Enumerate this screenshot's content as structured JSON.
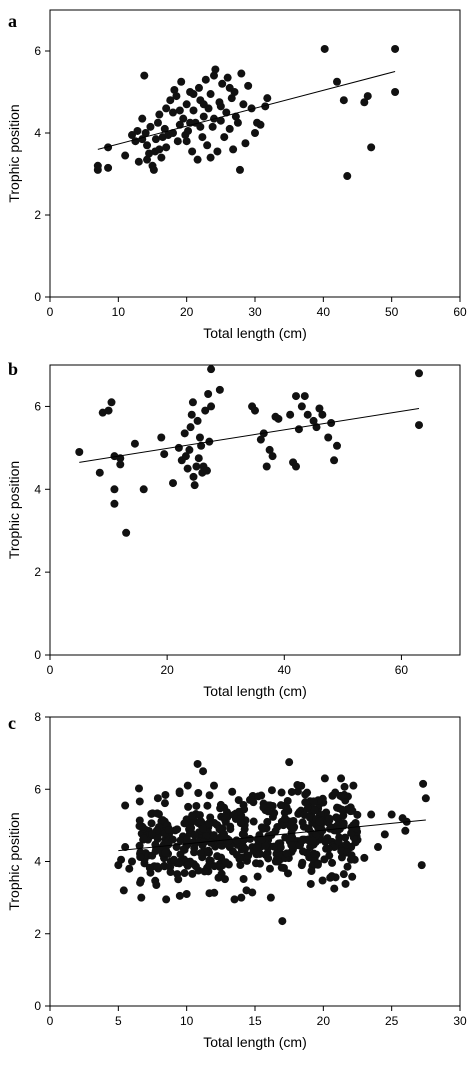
{
  "chart_data": [
    {
      "type": "scatter",
      "panel_label": "a",
      "xlabel": "Total length (cm)",
      "ylabel": "Trophic position",
      "xlim": [
        0,
        60
      ],
      "ylim": [
        0,
        7
      ],
      "xticks": [
        0,
        10,
        20,
        30,
        40,
        50,
        60
      ],
      "yticks": [
        0,
        2,
        4,
        6
      ],
      "grid": false,
      "regression": {
        "x": [
          7,
          50.5
        ],
        "y": [
          3.6,
          5.5
        ]
      },
      "points": [
        [
          7,
          3.1
        ],
        [
          7,
          3.2
        ],
        [
          8.5,
          3.65
        ],
        [
          8.5,
          3.15
        ],
        [
          11,
          3.45
        ],
        [
          12,
          3.95
        ],
        [
          12.5,
          3.8
        ],
        [
          13,
          3.3
        ],
        [
          13.5,
          4.35
        ],
        [
          13.8,
          5.4
        ],
        [
          14,
          4.0
        ],
        [
          14.2,
          3.7
        ],
        [
          14.5,
          3.5
        ],
        [
          14.7,
          4.15
        ],
        [
          15,
          3.2
        ],
        [
          15.2,
          3.1
        ],
        [
          15.4,
          3.55
        ],
        [
          15.5,
          3.85
        ],
        [
          15.8,
          4.25
        ],
        [
          16,
          3.6
        ],
        [
          16.3,
          3.4
        ],
        [
          16.5,
          3.9
        ],
        [
          16.8,
          4.1
        ],
        [
          17,
          4.6
        ],
        [
          17.3,
          3.95
        ],
        [
          17.6,
          4.8
        ],
        [
          18,
          4.5
        ],
        [
          18.2,
          5.05
        ],
        [
          18.5,
          4.9
        ],
        [
          18.7,
          3.8
        ],
        [
          19,
          4.2
        ],
        [
          19.2,
          5.25
        ],
        [
          19.5,
          4.35
        ],
        [
          19.8,
          3.95
        ],
        [
          20,
          4.7
        ],
        [
          20.2,
          4.05
        ],
        [
          20.5,
          5.0
        ],
        [
          20.8,
          3.55
        ],
        [
          21,
          4.55
        ],
        [
          21.3,
          4.25
        ],
        [
          21.6,
          3.35
        ],
        [
          21.8,
          5.1
        ],
        [
          22,
          4.8
        ],
        [
          22.3,
          3.9
        ],
        [
          22.5,
          4.4
        ],
        [
          22.8,
          5.3
        ],
        [
          23,
          3.7
        ],
        [
          23.2,
          4.6
        ],
        [
          23.5,
          4.95
        ],
        [
          23.8,
          4.15
        ],
        [
          24,
          5.4
        ],
        [
          24.2,
          5.55
        ],
        [
          24.5,
          3.55
        ],
        [
          24.8,
          4.75
        ],
        [
          25,
          4.3
        ],
        [
          25.2,
          5.2
        ],
        [
          25.5,
          3.9
        ],
        [
          25.8,
          4.5
        ],
        [
          26,
          5.35
        ],
        [
          26.3,
          4.1
        ],
        [
          26.6,
          4.85
        ],
        [
          26.8,
          3.6
        ],
        [
          27,
          5.0
        ],
        [
          27.2,
          4.4
        ],
        [
          27.5,
          4.25
        ],
        [
          27.8,
          3.1
        ],
        [
          28,
          5.45
        ],
        [
          28.3,
          4.7
        ],
        [
          28.6,
          3.75
        ],
        [
          29,
          5.15
        ],
        [
          29.5,
          4.6
        ],
        [
          30,
          4.0
        ],
        [
          30.3,
          4.25
        ],
        [
          30.8,
          4.2
        ],
        [
          31.5,
          4.65
        ],
        [
          31.8,
          4.85
        ],
        [
          18,
          4.0
        ],
        [
          17,
          3.65
        ],
        [
          16,
          4.45
        ],
        [
          14.2,
          3.35
        ],
        [
          13.5,
          3.85
        ],
        [
          12.8,
          4.05
        ],
        [
          22.5,
          4.7
        ],
        [
          21,
          4.95
        ],
        [
          23.5,
          3.4
        ],
        [
          25,
          4.65
        ],
        [
          26.3,
          5.1
        ],
        [
          24,
          4.35
        ],
        [
          20,
          3.8
        ],
        [
          19,
          4.55
        ],
        [
          20.5,
          4.25
        ],
        [
          22,
          4.15
        ],
        [
          40.2,
          6.05
        ],
        [
          42,
          5.25
        ],
        [
          43,
          4.8
        ],
        [
          43.5,
          2.95
        ],
        [
          46,
          4.75
        ],
        [
          46.5,
          4.9
        ],
        [
          47,
          3.65
        ],
        [
          50.5,
          6.05
        ],
        [
          50.5,
          5.0
        ]
      ]
    },
    {
      "type": "scatter",
      "panel_label": "b",
      "xlabel": "Total length (cm)",
      "ylabel": "Trophic position",
      "xlim": [
        0,
        70
      ],
      "ylim": [
        0,
        7
      ],
      "xticks": [
        0,
        20,
        40,
        60
      ],
      "yticks": [
        0,
        2,
        4,
        6
      ],
      "grid": false,
      "regression": {
        "x": [
          5,
          63
        ],
        "y": [
          4.65,
          5.95
        ]
      },
      "points": [
        [
          5,
          4.9
        ],
        [
          8.5,
          4.4
        ],
        [
          9,
          5.85
        ],
        [
          10,
          5.9
        ],
        [
          10.5,
          6.1
        ],
        [
          11,
          4.8
        ],
        [
          11,
          4.0
        ],
        [
          11,
          3.65
        ],
        [
          12,
          4.6
        ],
        [
          12,
          4.75
        ],
        [
          13,
          2.95
        ],
        [
          14.5,
          5.1
        ],
        [
          16,
          4.0
        ],
        [
          19,
          5.25
        ],
        [
          19.5,
          4.85
        ],
        [
          21,
          4.15
        ],
        [
          22,
          5.0
        ],
        [
          22.5,
          4.7
        ],
        [
          23,
          5.35
        ],
        [
          23.2,
          4.8
        ],
        [
          23.5,
          4.5
        ],
        [
          23.8,
          4.95
        ],
        [
          24,
          5.5
        ],
        [
          24.2,
          5.8
        ],
        [
          24.4,
          6.1
        ],
        [
          24.5,
          4.3
        ],
        [
          24.7,
          4.1
        ],
        [
          25,
          4.55
        ],
        [
          25.2,
          5.65
        ],
        [
          25.4,
          4.75
        ],
        [
          25.6,
          5.25
        ],
        [
          25.8,
          5.05
        ],
        [
          26,
          4.4
        ],
        [
          26.2,
          4.55
        ],
        [
          26.5,
          5.9
        ],
        [
          26.8,
          4.45
        ],
        [
          27,
          6.3
        ],
        [
          27.2,
          5.15
        ],
        [
          27.5,
          6.0
        ],
        [
          27.5,
          6.9
        ],
        [
          29,
          6.4
        ],
        [
          34.5,
          6.0
        ],
        [
          35,
          5.9
        ],
        [
          36,
          5.2
        ],
        [
          36.5,
          5.35
        ],
        [
          37,
          4.55
        ],
        [
          37.5,
          4.95
        ],
        [
          38,
          4.8
        ],
        [
          38.5,
          5.75
        ],
        [
          39,
          5.7
        ],
        [
          41,
          5.8
        ],
        [
          41.5,
          4.65
        ],
        [
          42,
          4.55
        ],
        [
          42,
          6.25
        ],
        [
          42.5,
          5.45
        ],
        [
          43,
          6.0
        ],
        [
          43.5,
          6.25
        ],
        [
          44,
          5.8
        ],
        [
          45,
          5.65
        ],
        [
          45.5,
          5.5
        ],
        [
          46,
          5.95
        ],
        [
          46.5,
          5.8
        ],
        [
          47.5,
          5.25
        ],
        [
          48,
          5.6
        ],
        [
          48.5,
          4.7
        ],
        [
          49,
          5.05
        ],
        [
          63,
          6.8
        ],
        [
          63,
          5.55
        ]
      ]
    },
    {
      "type": "scatter",
      "panel_label": "c",
      "xlabel": "Total length (cm)",
      "ylabel": "Trophic position",
      "xlim": [
        0,
        30
      ],
      "ylim": [
        0,
        8
      ],
      "xticks": [
        0,
        5,
        10,
        15,
        20,
        25,
        30
      ],
      "yticks": [
        0,
        2,
        4,
        6,
        8
      ],
      "grid": false,
      "regression": {
        "x": [
          5,
          27.5
        ],
        "y": [
          4.3,
          5.15
        ]
      },
      "points": [
        [
          5,
          3.9
        ],
        [
          5.2,
          4.05
        ],
        [
          5.4,
          3.2
        ],
        [
          5.5,
          4.4
        ],
        [
          5.5,
          5.55
        ],
        [
          5.8,
          3.8
        ],
        [
          6,
          4.0
        ],
        [
          17,
          2.35
        ],
        [
          27.3,
          6.15
        ],
        [
          27.5,
          5.75
        ],
        [
          27.2,
          3.9
        ],
        [
          26,
          4.85
        ],
        [
          26.1,
          5.1
        ],
        [
          25.8,
          5.2
        ],
        [
          25,
          5.3
        ],
        [
          24.5,
          4.75
        ],
        [
          24,
          4.4
        ],
        [
          23.5,
          5.3
        ],
        [
          23,
          4.1
        ],
        [
          22.5,
          4.6
        ],
        [
          22.3,
          4.05
        ],
        [
          21.5,
          3.65
        ],
        [
          21.8,
          5.8
        ],
        [
          22,
          5.5
        ],
        [
          22.2,
          6.1
        ],
        [
          20.8,
          3.25
        ],
        [
          20.5,
          3.55
        ],
        [
          17.5,
          6.75
        ],
        [
          10.8,
          6.7
        ],
        [
          11.2,
          6.5
        ],
        [
          12,
          6.1
        ],
        [
          8.5,
          2.95
        ],
        [
          9.5,
          3.05
        ],
        [
          10,
          3.1
        ],
        [
          14,
          3.0
        ],
        [
          13.5,
          2.95
        ]
      ],
      "cloud": {
        "n": 520,
        "x_range": [
          6.5,
          22.5
        ],
        "y_center": 4.65,
        "y_spread": 0.6
      }
    }
  ]
}
